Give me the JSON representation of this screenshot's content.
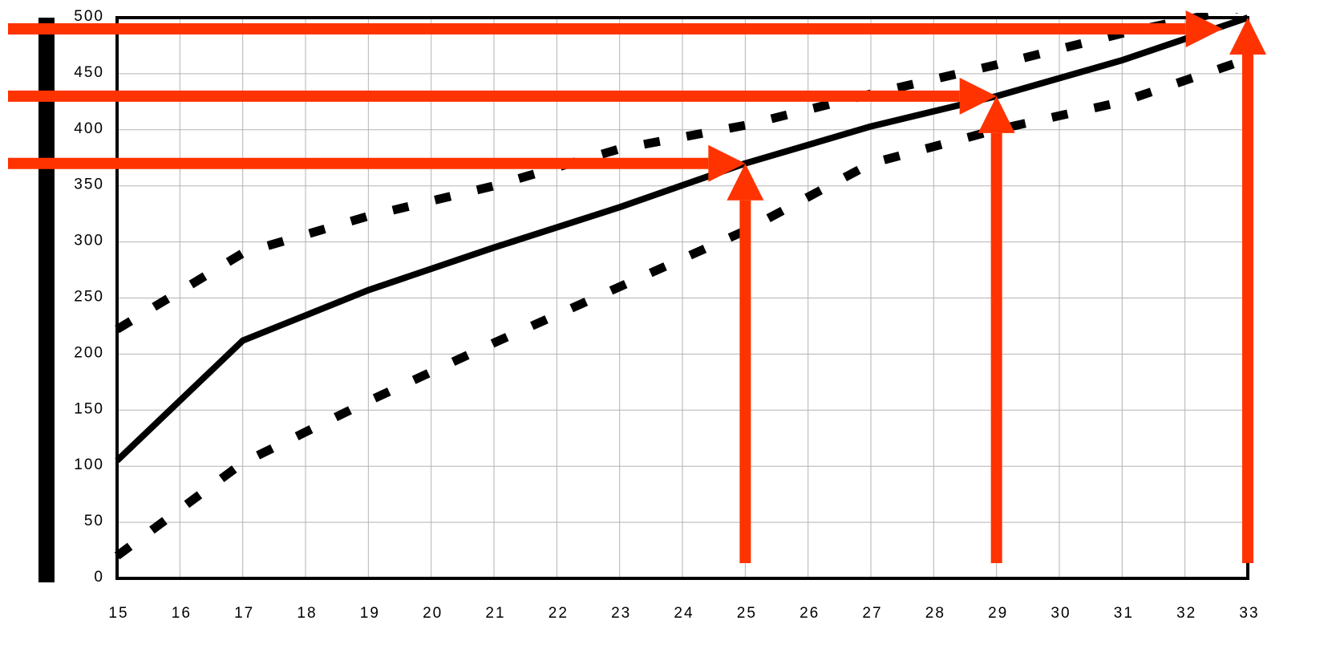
{
  "chart_data": {
    "type": "line",
    "title": "",
    "xlabel": "",
    "ylabel": "",
    "xlim": [
      15,
      33
    ],
    "ylim": [
      0,
      500
    ],
    "grid": true,
    "x_ticks": [
      "15",
      "16",
      "17",
      "18",
      "19",
      "20",
      "21",
      "22",
      "23",
      "24",
      "25",
      "26",
      "27",
      "28",
      "29",
      "30",
      "31",
      "32",
      "33"
    ],
    "y_ticks": [
      "0",
      "50",
      "100",
      "150",
      "200",
      "250",
      "300",
      "350",
      "400",
      "450",
      "500"
    ],
    "series": [
      {
        "style": "solid",
        "color": "#000000",
        "x": [
          15,
          17,
          19,
          21,
          23,
          25,
          27,
          29,
          31,
          33
        ],
        "y": [
          105,
          212,
          257,
          295,
          331,
          370,
          403,
          430,
          462,
          500
        ]
      },
      {
        "style": "dashed",
        "color": "#000000",
        "x": [
          15,
          17,
          19,
          21,
          23,
          25,
          27,
          29,
          31,
          33
        ],
        "y": [
          222,
          290,
          323,
          350,
          383,
          404,
          432,
          458,
          486,
          510
        ]
      },
      {
        "style": "dashed",
        "color": "#000000",
        "x": [
          15,
          17,
          19,
          21,
          23,
          25,
          27,
          29,
          31,
          33
        ],
        "y": [
          20,
          103,
          158,
          210,
          260,
          310,
          370,
          400,
          425,
          463
        ]
      }
    ],
    "annotations": [
      {
        "type": "arrow-horizontal",
        "color": "#ff3300",
        "y": 490,
        "x_to": 32.6
      },
      {
        "type": "arrow-horizontal",
        "color": "#ff3300",
        "y": 430,
        "x_to": 29
      },
      {
        "type": "arrow-horizontal",
        "color": "#ff3300",
        "y": 370,
        "x_to": 25
      },
      {
        "type": "arrow-vertical",
        "color": "#ff3300",
        "x": 25,
        "y_to": 370
      },
      {
        "type": "arrow-vertical",
        "color": "#ff3300",
        "x": 29,
        "y_to": 430
      },
      {
        "type": "arrow-vertical",
        "color": "#ff3300",
        "x": 33,
        "y_to": 500
      }
    ]
  }
}
